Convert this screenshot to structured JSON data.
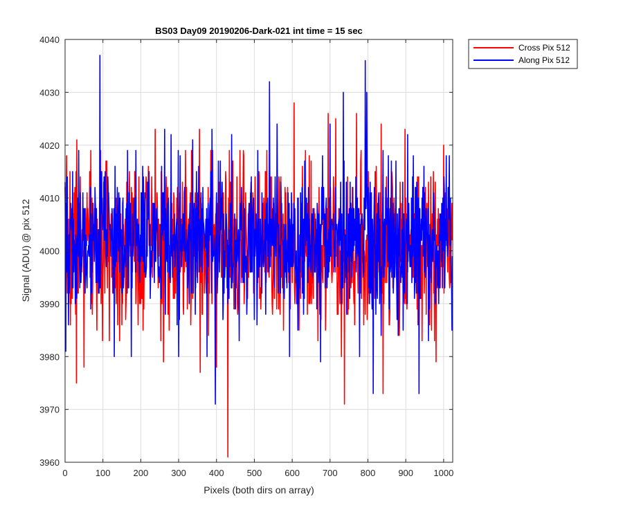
{
  "chart_data": {
    "type": "line",
    "title": "BS03 Day09 20190206-Dark-021 int time = 15 sec",
    "xlabel": "Pixels (both dirs on array)",
    "ylabel": "Signal (ADU) @ pix 512",
    "xlim": [
      0,
      1024
    ],
    "ylim": [
      3960,
      4040
    ],
    "xticks": [
      0,
      100,
      200,
      300,
      400,
      500,
      600,
      700,
      800,
      900,
      1000
    ],
    "yticks": [
      3960,
      3970,
      3980,
      3990,
      4000,
      4010,
      4020,
      4030,
      4040
    ],
    "grid": true,
    "legend_position": "outside-top-right",
    "series": [
      {
        "name": "Cross Pix 512",
        "color": "#ff0000",
        "noise": {
          "n_points": 1024,
          "mean": 4001,
          "std": 7.5,
          "seed": 7
        },
        "peaks": [
          {
            "x": 30,
            "y": 3975
          },
          {
            "x": 31,
            "y": 4021
          },
          {
            "x": 50,
            "y": 3978
          },
          {
            "x": 65,
            "y": 4015
          },
          {
            "x": 84,
            "y": 3985
          },
          {
            "x": 110,
            "y": 4017
          },
          {
            "x": 150,
            "y": 3986
          },
          {
            "x": 238,
            "y": 4023
          },
          {
            "x": 260,
            "y": 3979
          },
          {
            "x": 275,
            "y": 3985
          },
          {
            "x": 355,
            "y": 4023
          },
          {
            "x": 357,
            "y": 3977
          },
          {
            "x": 385,
            "y": 4019
          },
          {
            "x": 400,
            "y": 3978
          },
          {
            "x": 430,
            "y": 3961
          },
          {
            "x": 470,
            "y": 4010
          },
          {
            "x": 540,
            "y": 3998
          },
          {
            "x": 605,
            "y": 4028
          },
          {
            "x": 645,
            "y": 4018
          },
          {
            "x": 695,
            "y": 4026
          },
          {
            "x": 715,
            "y": 4025
          },
          {
            "x": 730,
            "y": 3980
          },
          {
            "x": 738,
            "y": 3971
          },
          {
            "x": 770,
            "y": 4026
          },
          {
            "x": 835,
            "y": 4024
          },
          {
            "x": 840,
            "y": 3973
          },
          {
            "x": 860,
            "y": 4007
          },
          {
            "x": 898,
            "y": 4023
          },
          {
            "x": 935,
            "y": 3987
          },
          {
            "x": 980,
            "y": 3979
          },
          {
            "x": 1000,
            "y": 4020
          }
        ]
      },
      {
        "name": "Along Pix 512",
        "color": "#0000ff",
        "noise": {
          "n_points": 1024,
          "mean": 4002,
          "std": 6.5,
          "seed": 19
        },
        "peaks": [
          {
            "x": 2,
            "y": 3981
          },
          {
            "x": 5,
            "y": 4014
          },
          {
            "x": 92,
            "y": 4037
          },
          {
            "x": 130,
            "y": 3980
          },
          {
            "x": 165,
            "y": 4019
          },
          {
            "x": 175,
            "y": 3980
          },
          {
            "x": 207,
            "y": 4014
          },
          {
            "x": 263,
            "y": 4023
          },
          {
            "x": 265,
            "y": 3988
          },
          {
            "x": 280,
            "y": 4022
          },
          {
            "x": 300,
            "y": 3980
          },
          {
            "x": 337,
            "y": 4021
          },
          {
            "x": 375,
            "y": 3980
          },
          {
            "x": 388,
            "y": 4023
          },
          {
            "x": 397,
            "y": 3971
          },
          {
            "x": 440,
            "y": 4022
          },
          {
            "x": 460,
            "y": 3983
          },
          {
            "x": 500,
            "y": 3987
          },
          {
            "x": 540,
            "y": 4032
          },
          {
            "x": 560,
            "y": 4024
          },
          {
            "x": 593,
            "y": 3980
          },
          {
            "x": 630,
            "y": 3988
          },
          {
            "x": 675,
            "y": 3979
          },
          {
            "x": 680,
            "y": 4018
          },
          {
            "x": 700,
            "y": 4024
          },
          {
            "x": 735,
            "y": 4030
          },
          {
            "x": 778,
            "y": 3980
          },
          {
            "x": 793,
            "y": 4036
          },
          {
            "x": 797,
            "y": 4030
          },
          {
            "x": 814,
            "y": 3973
          },
          {
            "x": 835,
            "y": 3984
          },
          {
            "x": 880,
            "y": 3984
          },
          {
            "x": 905,
            "y": 4022
          },
          {
            "x": 935,
            "y": 3973
          },
          {
            "x": 960,
            "y": 3983
          },
          {
            "x": 1015,
            "y": 4018
          },
          {
            "x": 1022,
            "y": 3985
          }
        ]
      }
    ]
  }
}
